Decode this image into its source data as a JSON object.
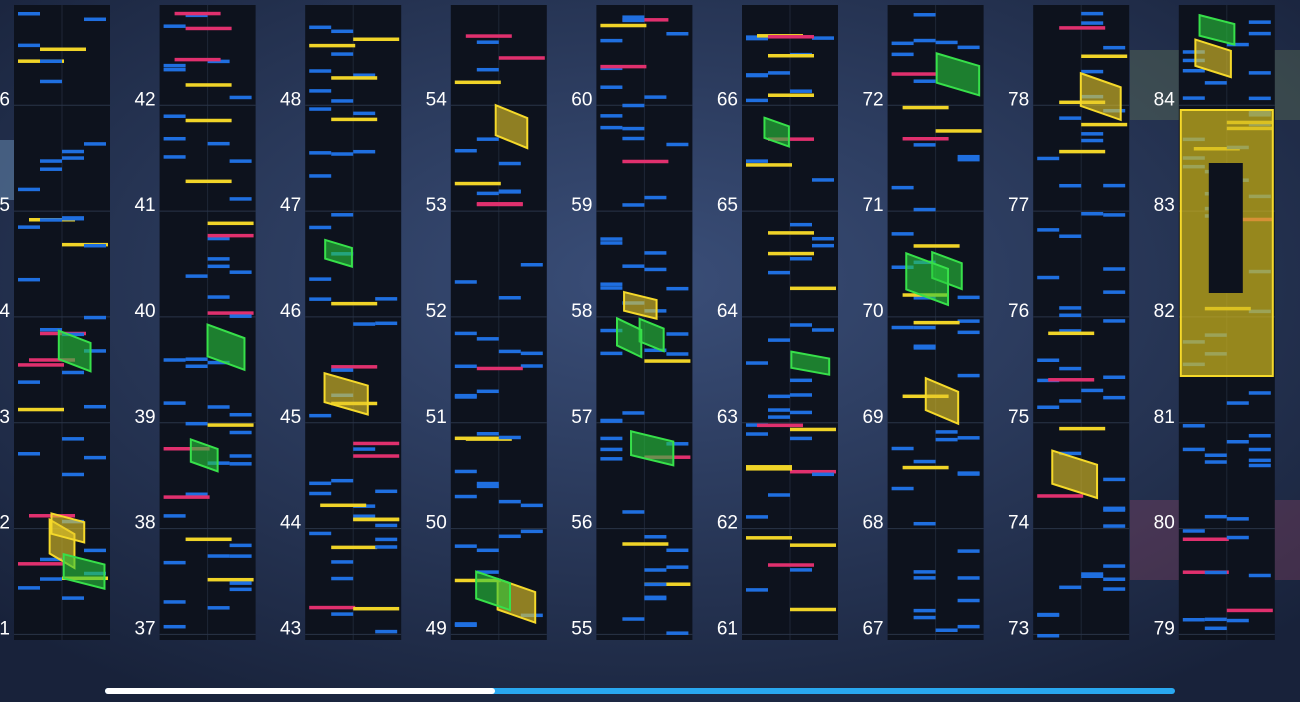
{
  "columns": [
    {
      "labels": [
        "6",
        "5",
        "4",
        "3",
        "2",
        "1"
      ]
    },
    {
      "labels": [
        "42",
        "41",
        "40",
        "39",
        "38",
        "37"
      ]
    },
    {
      "labels": [
        "48",
        "47",
        "46",
        "45",
        "44",
        "43"
      ]
    },
    {
      "labels": [
        "54",
        "53",
        "52",
        "51",
        "50",
        "49"
      ]
    },
    {
      "labels": [
        "60",
        "59",
        "58",
        "57",
        "56",
        "55"
      ]
    },
    {
      "labels": [
        "66",
        "65",
        "64",
        "63",
        "62",
        "61"
      ]
    },
    {
      "labels": [
        "72",
        "71",
        "70",
        "69",
        "68",
        "67"
      ]
    },
    {
      "labels": [
        "78",
        "77",
        "76",
        "75",
        "74",
        "73"
      ]
    },
    {
      "labels": [
        "84",
        "83",
        "82",
        "81",
        "80",
        "79"
      ]
    }
  ]
}
